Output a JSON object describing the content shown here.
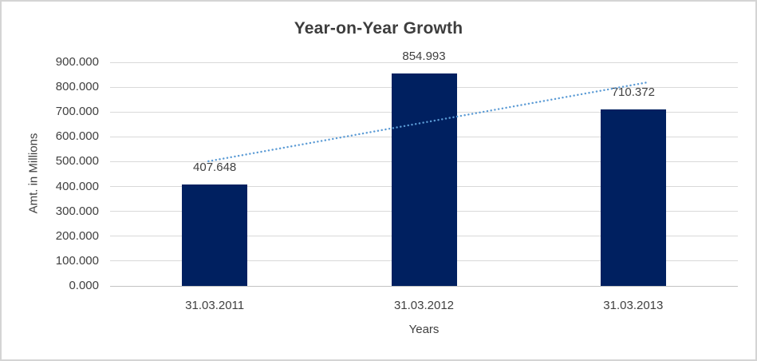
{
  "frame": {
    "background": "#FFFFFF",
    "border_color": "#D4D4D4"
  },
  "palette": {
    "bar": "#002060",
    "trendline": "#5B9BD5",
    "gridline": "#D9D9D9",
    "axis_line": "#C3C3C3",
    "text": "#404040",
    "title_text": "#3D3D3D"
  },
  "chart_data": {
    "type": "bar",
    "title": "Year-on-Year Growth",
    "xlabel": "Years",
    "ylabel": "Amt. in Millions",
    "categories": [
      "31.03.2011",
      "31.03.2012",
      "31.03.2013"
    ],
    "values": [
      407.648,
      854.993,
      710.372
    ],
    "data_labels": [
      "407.648",
      "854.993",
      "710.372"
    ],
    "ylim": [
      0,
      900
    ],
    "y_ticks": [
      {
        "value": 0,
        "label": "0.000"
      },
      {
        "value": 100,
        "label": "100.000"
      },
      {
        "value": 200,
        "label": "200.000"
      },
      {
        "value": 300,
        "label": "300.000"
      },
      {
        "value": 400,
        "label": "400.000"
      },
      {
        "value": 500,
        "label": "500.000"
      },
      {
        "value": 600,
        "label": "600.000"
      },
      {
        "value": 700,
        "label": "700.000"
      },
      {
        "value": 800,
        "label": "800.000"
      },
      {
        "value": 900,
        "label": "900.000"
      }
    ],
    "grid": true,
    "legend": "none",
    "bar_color": "#002060",
    "trendline": {
      "type": "linear",
      "line_style": "dotted",
      "color": "#5B9BD5"
    }
  }
}
